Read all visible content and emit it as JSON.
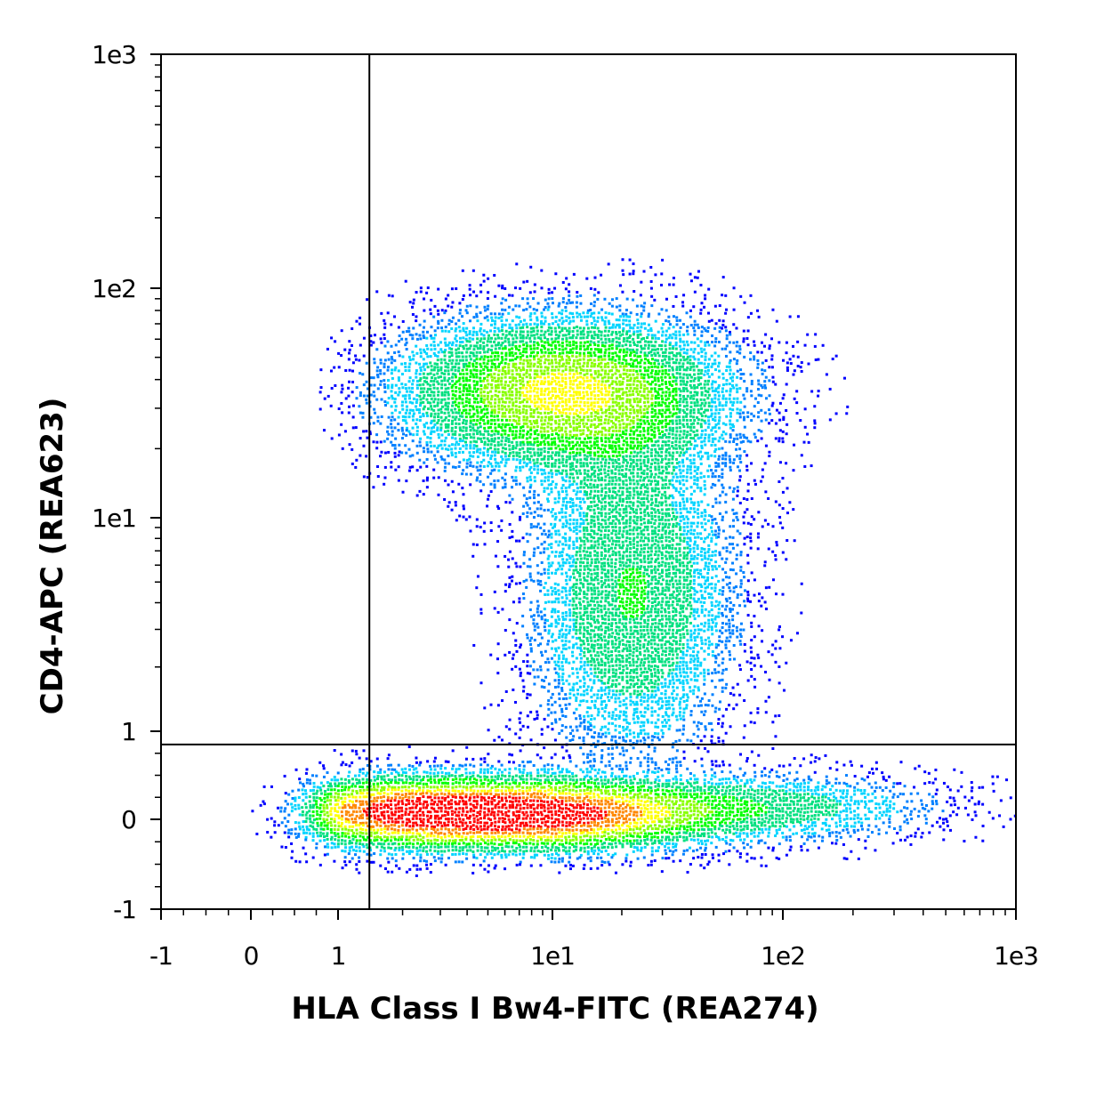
{
  "chart_data": {
    "type": "scatter",
    "subtype": "flow-cytometry density dot plot",
    "xlabel": "HLA Class I Bw4-FITC (REA274)",
    "ylabel": "CD4-APC (REA623)",
    "x_scale": "biexponential",
    "y_scale": "biexponential",
    "xlim": [
      -1,
      1000
    ],
    "ylim": [
      -1,
      1000
    ],
    "x_ticks": [
      {
        "value": -1,
        "label": "-1"
      },
      {
        "value": 0,
        "label": "0"
      },
      {
        "value": 1,
        "label": "1"
      },
      {
        "value": 10,
        "label": "1e1"
      },
      {
        "value": 100,
        "label": "1e2"
      },
      {
        "value": 1000,
        "label": "1e3"
      }
    ],
    "y_ticks": [
      {
        "value": -1,
        "label": "-1"
      },
      {
        "value": 0,
        "label": "0"
      },
      {
        "value": 1,
        "label": "1"
      },
      {
        "value": 10,
        "label": "1e1"
      },
      {
        "value": 100,
        "label": "1e2"
      },
      {
        "value": 1000,
        "label": "1e3"
      }
    ],
    "quadrant_gate": {
      "x": 1.4,
      "y": 0.85
    },
    "colormap": [
      "#0000ff",
      "#00d4ff",
      "#00ff00",
      "#ffff00",
      "#ff0000"
    ],
    "populations": [
      {
        "x_center": 2.5,
        "y_center": 0.1,
        "x_spread": 0.95,
        "y_spread": 0.12,
        "relative_density": 1.0
      },
      {
        "x_center": 12,
        "y_center": 0.05,
        "x_spread": 0.75,
        "y_spread": 0.12,
        "relative_density": 0.55
      },
      {
        "x_center": 70,
        "y_center": 0.15,
        "x_spread": 1.0,
        "y_spread": 0.12,
        "relative_density": 0.3
      },
      {
        "x_center": 10,
        "y_center": 36,
        "x_spread": 0.9,
        "y_spread": 0.1,
        "relative_density": 0.6
      },
      {
        "x_center": 22,
        "y_center": 4.5,
        "x_spread": 0.55,
        "y_spread": 0.25,
        "relative_density": 0.35
      }
    ]
  }
}
